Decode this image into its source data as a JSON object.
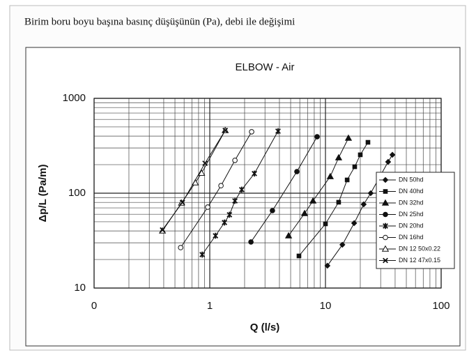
{
  "heading": "Birim boru boyu başına basınç düşüşünün (Pa), debi ile değişimi",
  "chart_data": {
    "type": "line",
    "title": "ELBOW - Air",
    "x_label": "Q (l/s)",
    "y_label": "Δp/L (Pa/m)",
    "x_scale": "log",
    "y_scale": "log",
    "grid": true,
    "legend": "right",
    "xlim": [
      0.1,
      100
    ],
    "ylim": [
      10,
      1000
    ],
    "xticks": [
      {
        "value": 0.1,
        "label": "0"
      },
      1,
      10,
      100
    ],
    "yticks": [
      10,
      100,
      1000
    ],
    "series": [
      {
        "name": "DN 50hd",
        "marker": "diamond",
        "color": "#111111",
        "x": [
          10.4,
          14.0,
          17.7,
          21.4,
          24.6,
          34.8,
          37.9
        ],
        "values": [
          17.2,
          28.6,
          48.3,
          76.3,
          100,
          214,
          254
        ]
      },
      {
        "name": "DN 40hd",
        "marker": "square",
        "color": "#111111",
        "x": [
          5.9,
          10.0,
          13.0,
          15.4,
          17.9,
          20.0,
          23.3
        ],
        "values": [
          21.8,
          47.5,
          80.3,
          138,
          190,
          254,
          344
        ]
      },
      {
        "name": "DN 32hd",
        "marker": "triangle",
        "color": "#111111",
        "x": [
          4.8,
          6.6,
          7.8,
          11.0,
          13.0,
          15.8
        ],
        "values": [
          35.6,
          61.2,
          83,
          150,
          237,
          381
        ]
      },
      {
        "name": "DN 25hd",
        "marker": "circle",
        "color": "#111111",
        "x": [
          2.27,
          3.48,
          5.66,
          8.47
        ],
        "values": [
          30.6,
          65.5,
          169,
          394
        ]
      },
      {
        "name": "DN 20hd",
        "marker": "asterisk",
        "color": "#111111",
        "x": [
          0.86,
          1.12,
          1.34,
          1.48,
          1.65,
          1.89,
          2.43,
          3.89
        ],
        "values": [
          22.5,
          35.6,
          49.1,
          59.2,
          83,
          109,
          161,
          451
        ]
      },
      {
        "name": "DN 16hd",
        "marker": "open-circle",
        "color": "#111111",
        "x": [
          0.56,
          0.96,
          1.25,
          1.65,
          2.3
        ],
        "values": [
          26.7,
          71.3,
          120,
          222,
          444
        ]
      },
      {
        "name": "DN 12 50x0.22",
        "marker": "open-triangle",
        "color": "#111111",
        "x": [
          0.39,
          0.57,
          0.75,
          0.85,
          1.36
        ],
        "values": [
          40.1,
          78.9,
          129,
          163,
          459
        ]
      },
      {
        "name": "DN 12 47x0.15",
        "marker": "x",
        "color": "#111111",
        "x": [
          0.39,
          0.58,
          0.91,
          1.36
        ],
        "values": [
          41,
          80,
          207,
          459
        ]
      }
    ]
  }
}
